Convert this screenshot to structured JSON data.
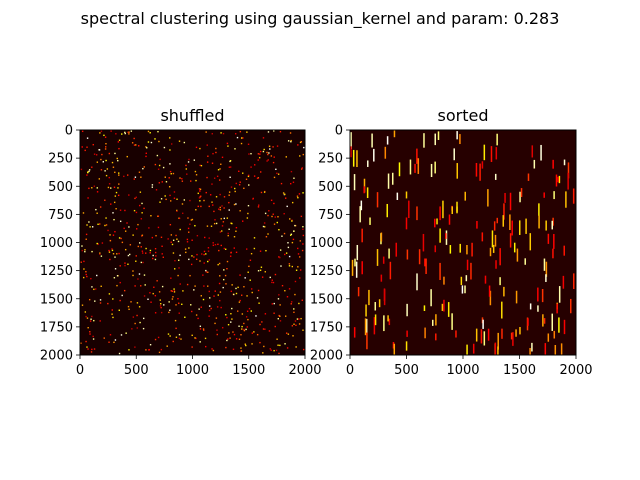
{
  "figure": {
    "suptitle": "spectral clustering using gaussian_kernel and param: 0.283"
  },
  "colors": {
    "background": "#ffffff",
    "heat_low": "#0a0000",
    "heat_mid": "#e0451a",
    "heat_high": "#ffffe6"
  },
  "chart_data": [
    {
      "type": "heatmap",
      "title": "shuffled",
      "colormap": "hot",
      "xlim": [
        0,
        2000
      ],
      "ylim": [
        2000,
        0
      ],
      "xticks": [
        0,
        500,
        1000,
        1500,
        2000
      ],
      "yticks": [
        0,
        250,
        500,
        750,
        1000,
        1250,
        1500,
        1750,
        2000
      ],
      "xtick_labels": [
        "0",
        "500",
        "1000",
        "1500",
        "2000"
      ],
      "ytick_labels": [
        "0",
        "250",
        "500",
        "750",
        "1000",
        "1250",
        "1500",
        "1750",
        "2000"
      ],
      "pattern": "scattered",
      "background_value": 0.02,
      "seed": 7
    },
    {
      "type": "heatmap",
      "title": "sorted",
      "colormap": "hot",
      "xlim": [
        0,
        2000
      ],
      "ylim": [
        2000,
        0
      ],
      "xticks": [
        0,
        500,
        1000,
        1500,
        2000
      ],
      "yticks": [
        0,
        250,
        500,
        750,
        1000,
        1250,
        1500,
        1750,
        2000
      ],
      "xtick_labels": [
        "0",
        "500",
        "1000",
        "1500",
        "2000"
      ],
      "ytick_labels": [
        "0",
        "250",
        "500",
        "750",
        "1000",
        "1250",
        "1500",
        "1750",
        "2000"
      ],
      "pattern": "vertical-streaks",
      "background_value": 0.04,
      "seed": 19
    }
  ]
}
